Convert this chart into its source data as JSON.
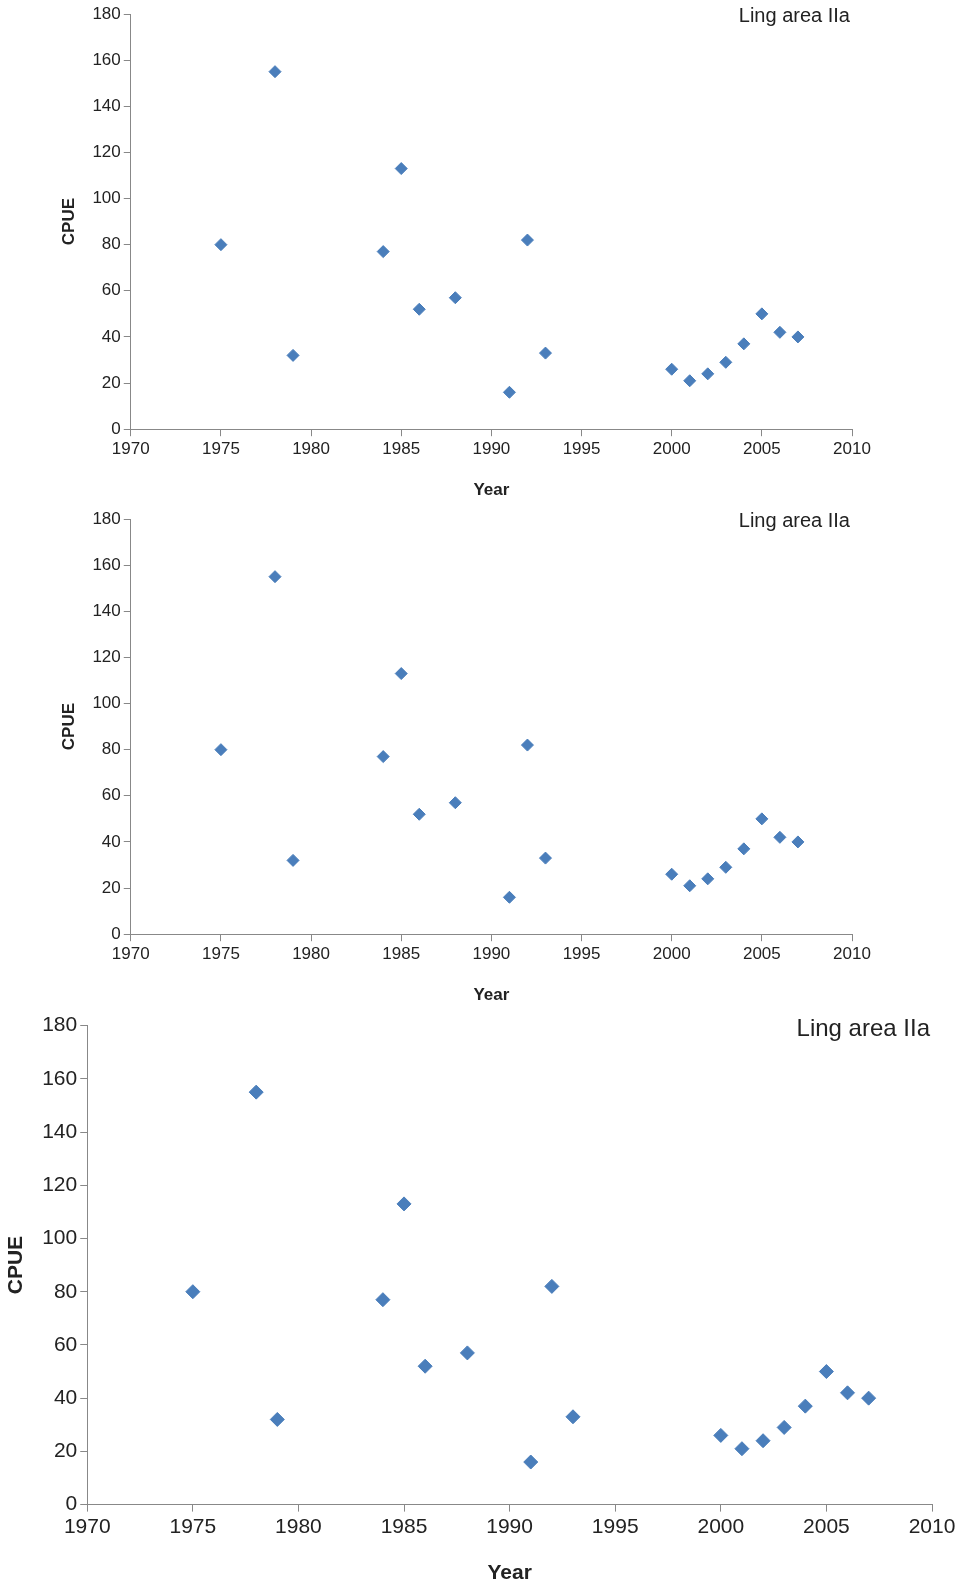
{
  "chart_data": [
    {
      "type": "scatter",
      "xlabel": "Year",
      "ylabel": "CPUE",
      "annotations": [
        "Ling area IIa"
      ],
      "color": "#4a7ebb",
      "marker": "diamond",
      "grid": false,
      "legend": false,
      "x": [
        1975,
        1978,
        1979,
        1984,
        1985,
        1986,
        1988,
        1991,
        1992,
        1993,
        2000,
        2001,
        2002,
        2003,
        2004,
        2005,
        2006,
        2007
      ],
      "values": [
        80,
        155,
        32,
        77,
        113,
        52,
        57,
        16,
        82,
        33,
        26,
        21,
        24,
        29,
        37,
        50,
        42,
        40
      ],
      "xlim": [
        1970,
        2010
      ],
      "xticks": [
        1970,
        1975,
        1980,
        1985,
        1990,
        1995,
        2000,
        2005,
        2010
      ],
      "ylim": [
        0,
        180
      ],
      "yticks": [
        0,
        20,
        40,
        60,
        80,
        100,
        120,
        140,
        160,
        180
      ]
    },
    {
      "type": "scatter",
      "xlabel": "Year",
      "ylabel": "CPUE",
      "annotations": [
        "Ling area IIa"
      ],
      "color": "#4a7ebb",
      "marker": "diamond",
      "grid": false,
      "legend": false,
      "x": [
        1975,
        1978,
        1979,
        1984,
        1985,
        1986,
        1988,
        1991,
        1992,
        1993,
        2000,
        2001,
        2002,
        2003,
        2004,
        2005,
        2006,
        2007
      ],
      "values": [
        80,
        155,
        32,
        77,
        113,
        52,
        57,
        16,
        82,
        33,
        26,
        21,
        24,
        29,
        37,
        50,
        42,
        40
      ],
      "xlim": [
        1970,
        2010
      ],
      "xticks": [
        1970,
        1975,
        1980,
        1985,
        1990,
        1995,
        2000,
        2005,
        2010
      ],
      "ylim": [
        0,
        180
      ],
      "yticks": [
        0,
        20,
        40,
        60,
        80,
        100,
        120,
        140,
        160,
        180
      ]
    },
    {
      "type": "scatter",
      "xlabel": "Year",
      "ylabel": "CPUE",
      "annotations": [
        "Ling area IIa"
      ],
      "color": "#4a7ebb",
      "marker": "diamond",
      "grid": false,
      "legend": false,
      "x": [
        1975,
        1978,
        1979,
        1984,
        1985,
        1986,
        1988,
        1991,
        1992,
        1993,
        2000,
        2001,
        2002,
        2003,
        2004,
        2005,
        2006,
        2007
      ],
      "values": [
        80,
        155,
        32,
        77,
        113,
        52,
        57,
        16,
        82,
        33,
        26,
        21,
        24,
        29,
        37,
        50,
        42,
        40
      ],
      "xlim": [
        1970,
        2010
      ],
      "xticks": [
        1970,
        1975,
        1980,
        1985,
        1990,
        1995,
        2000,
        2005,
        2010
      ],
      "ylim": [
        0,
        180
      ],
      "yticks": [
        0,
        20,
        40,
        60,
        80,
        100,
        120,
        140,
        160,
        180
      ]
    }
  ]
}
